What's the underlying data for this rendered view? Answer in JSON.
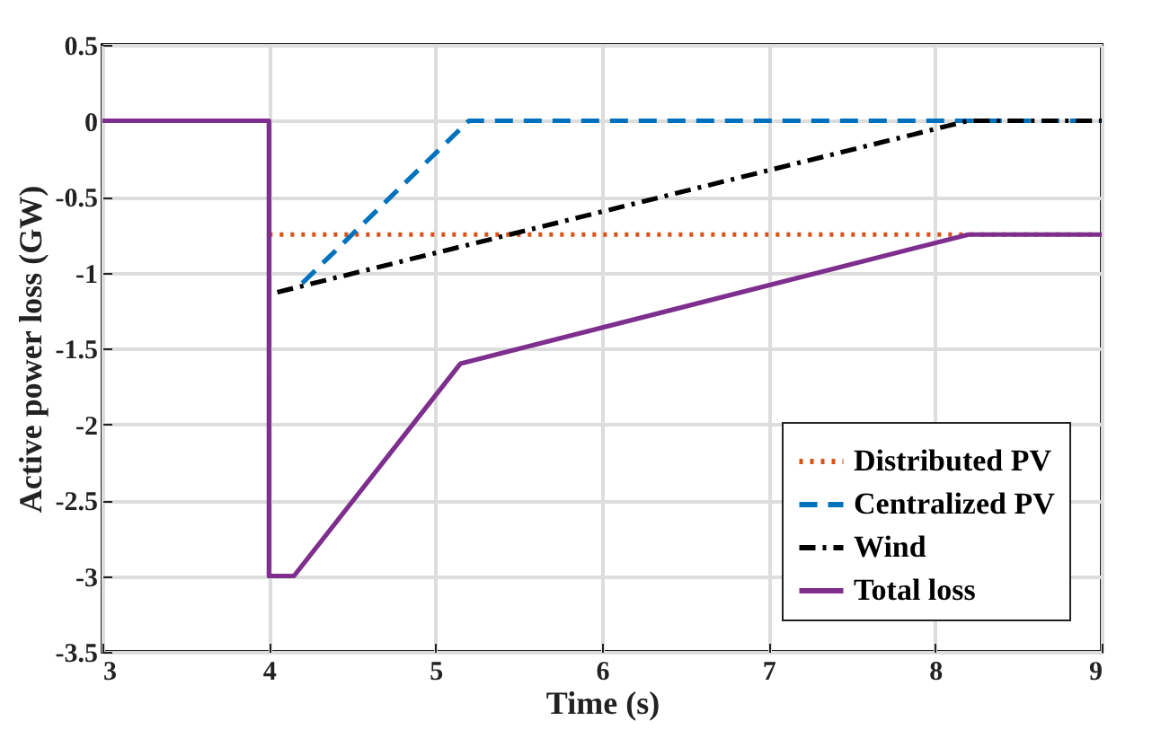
{
  "chart_data": {
    "type": "line",
    "xlabel": "Time (s)",
    "ylabel": "Active power loss (GW)",
    "xlim": [
      3,
      9
    ],
    "xticks": [
      3,
      4,
      5,
      6,
      7,
      8,
      9
    ],
    "ylim": [
      -3.5,
      0.5
    ],
    "yticks": [
      -3.5,
      -3,
      -2.5,
      -2,
      -1.5,
      -1,
      -0.5,
      0,
      0.5
    ],
    "grid": true,
    "legend": "bottom right",
    "marker": "none",
    "series": [
      {
        "name": "Distributed PV",
        "color": "#d95319",
        "line_style": "dotted",
        "x": [
          4,
          9
        ],
        "values": [
          -0.75,
          -0.75
        ]
      },
      {
        "name": "Centralized PV",
        "color": "#0072bd",
        "line_style": "dashed",
        "x": [
          4.2,
          5.2,
          9
        ],
        "values": [
          -1.07,
          0,
          0
        ]
      },
      {
        "name": "Wind",
        "color": "#000000",
        "line_style": "dashdot",
        "x": [
          4.05,
          8.2,
          9
        ],
        "values": [
          -1.13,
          0,
          0
        ]
      },
      {
        "name": "Total loss",
        "color": "#7e2f8e",
        "line_style": "solid",
        "x": [
          3,
          4,
          4,
          4.15,
          5.15,
          8.2,
          9
        ],
        "values": [
          0,
          0,
          -3,
          -3,
          -1.6,
          -0.75,
          -0.75
        ]
      }
    ]
  }
}
